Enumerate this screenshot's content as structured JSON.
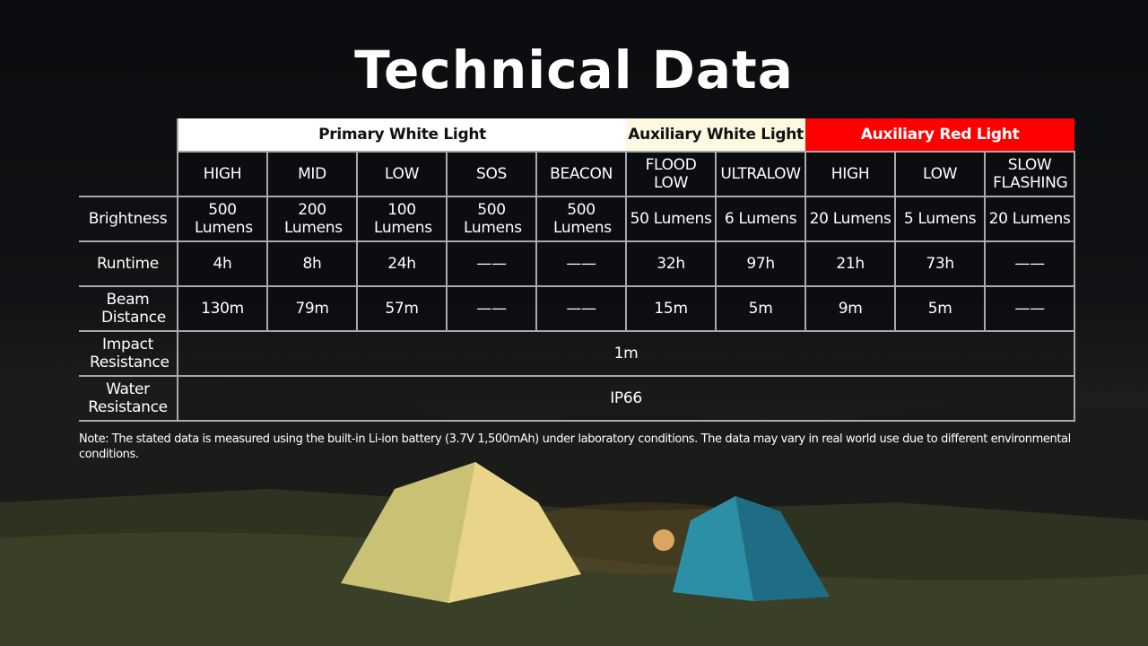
{
  "title": "Technical Data",
  "groups": [
    {
      "label": "Primary White Light",
      "bg": "#ffffff",
      "fg": "#111111"
    },
    {
      "label": "Auxiliary White Light",
      "bg": "#fdf9e0",
      "fg": "#111111"
    },
    {
      "label": "Auxiliary Red Light",
      "bg": "#ff0000",
      "fg": "#ffffff"
    }
  ],
  "modes": [
    "HIGH",
    "MID",
    "LOW",
    "SOS",
    "BEACON",
    "FLOOD LOW",
    "ULTRALOW",
    "HIGH",
    "LOW",
    "SLOW FLASHING"
  ],
  "rows": [
    {
      "label": "Brightness",
      "values": [
        "500 Lumens",
        "200 Lumens",
        "100 Lumens",
        "500 Lumens",
        "500 Lumens",
        "50 Lumens",
        "6 Lumens",
        "20 Lumens",
        "5 Lumens",
        "20 Lumens"
      ]
    },
    {
      "label": "Runtime",
      "values": [
        "4h",
        "8h",
        "24h",
        "——",
        "——",
        "32h",
        "97h",
        "21h",
        "73h",
        "——"
      ]
    },
    {
      "label": "Beam Distance",
      "values": [
        "130m",
        "79m",
        "57m",
        "——",
        "——",
        "15m",
        "5m",
        "9m",
        "5m",
        "——"
      ]
    }
  ],
  "impact": {
    "label": "Impact Resistance",
    "value": "1m"
  },
  "water": {
    "label": "Water Resistance",
    "value": "IP66"
  },
  "note": "Note: The stated data is measured using the built-in Li-ion battery (3.7V 1,500mAh) under laboratory conditions. The data may vary in real world use due to different environmental conditions."
}
